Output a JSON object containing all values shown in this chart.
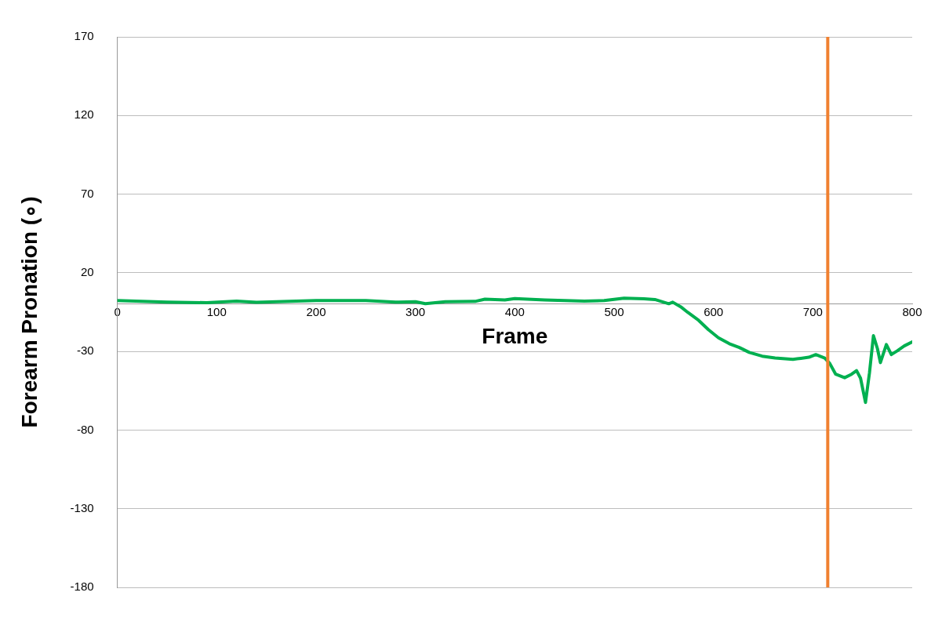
{
  "chart_data": {
    "type": "line",
    "xlabel": "Frame",
    "ylabel": "Forearm Pronation (∘)",
    "xlim": [
      0,
      800
    ],
    "xticks": [
      0,
      100,
      200,
      300,
      400,
      500,
      600,
      700,
      800
    ],
    "ylim": [
      -180,
      170
    ],
    "yticks": [
      -180,
      -130,
      -80,
      -30,
      20,
      70,
      120,
      170
    ],
    "grid": "y",
    "legend": false,
    "marker": "none",
    "line_style": "solid",
    "ref_lines": [
      {
        "axis": "x",
        "value": 715,
        "label": null,
        "color": "#f08030"
      }
    ],
    "series": [
      {
        "color": "#00b050",
        "x": [
          0,
          50,
          90,
          120,
          140,
          200,
          250,
          280,
          300,
          310,
          330,
          360,
          370,
          380,
          390,
          400,
          430,
          470,
          490,
          510,
          530,
          541,
          555,
          559,
          567,
          574,
          585,
          595,
          605,
          616,
          626,
          636,
          649,
          662,
          680,
          688,
          696,
          703,
          712,
          717,
          723,
          732,
          739,
          744,
          748,
          753,
          757,
          761,
          765,
          768,
          774,
          779,
          785,
          792,
          800
        ],
        "values": [
          2.3,
          1.3,
          1.0,
          2.0,
          1.2,
          2.3,
          2.3,
          1.3,
          1.6,
          0.4,
          1.6,
          1.8,
          3.2,
          3.0,
          2.7,
          3.6,
          2.7,
          2.0,
          2.3,
          3.9,
          3.5,
          3.0,
          0.3,
          1.3,
          -1.6,
          -5.1,
          -10.2,
          -16.2,
          -21.3,
          -25.1,
          -27.5,
          -30.6,
          -33,
          -34.2,
          -35,
          -34.4,
          -33.7,
          -32,
          -34.2,
          -37.6,
          -44.5,
          -46.7,
          -44.5,
          -42.2,
          -47,
          -62.4,
          -43.6,
          -20,
          -28.2,
          -37.1,
          -25.6,
          -32,
          -29.6,
          -26.5,
          -23.9
        ]
      }
    ]
  }
}
